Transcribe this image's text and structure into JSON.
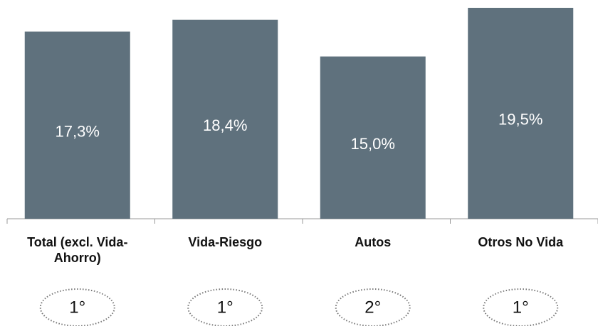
{
  "chart_data": {
    "type": "bar",
    "categories": [
      "Total (excl. Vida-Ahorro)",
      "Vida-Riesgo",
      "Autos",
      "Otros No Vida"
    ],
    "values": [
      17.3,
      18.4,
      15.0,
      19.5
    ],
    "value_labels": [
      "17,3%",
      "18,4%",
      "15,0%",
      "19,5%"
    ],
    "rank_labels": [
      "1°",
      "1°",
      "2°",
      "1°"
    ],
    "color": "#5f717d"
  }
}
